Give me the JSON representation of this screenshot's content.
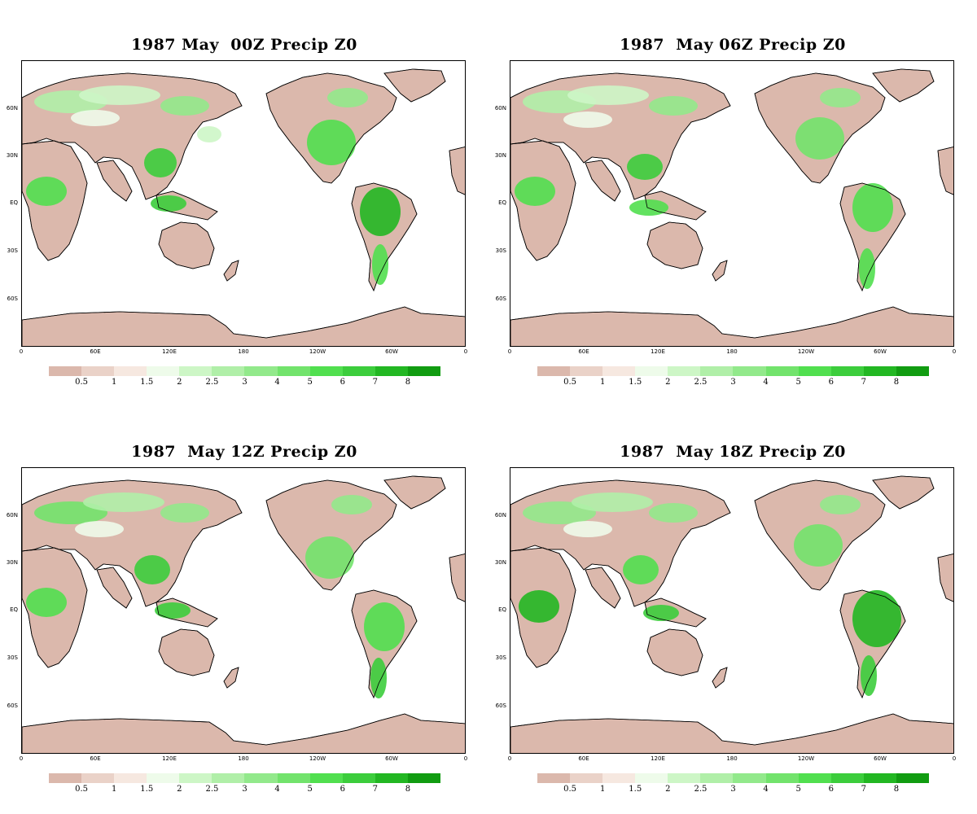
{
  "panels": [
    {
      "title": "1987 May  00Z Precip Z0"
    },
    {
      "title": "1987  May 06Z Precip Z0"
    },
    {
      "title": "1987  May 12Z Precip Z0"
    },
    {
      "title": "1987  May 18Z Precip Z0"
    }
  ],
  "lat_labels": [
    "60N",
    "30N",
    "EQ",
    "30S",
    "60S"
  ],
  "lon_labels": [
    "0",
    "60E",
    "120E",
    "180",
    "120W",
    "60W",
    "0"
  ],
  "colorbar": {
    "colors": [
      "#dbb8ac",
      "#ead2c8",
      "#f6e8e0",
      "#eefbea",
      "#cdf6c6",
      "#b0efa8",
      "#92e98b",
      "#72e36c",
      "#51df4f",
      "#3ccd3c",
      "#22b722",
      "#119c11"
    ],
    "labels": [
      "0.5",
      "1",
      "1.5",
      "2",
      "2.5",
      "3",
      "4",
      "5",
      "6",
      "7",
      "8"
    ]
  },
  "legend_colors": {
    "dry": "#dbb8ac",
    "mid": "#b0efa8",
    "wet": "#22b722"
  }
}
